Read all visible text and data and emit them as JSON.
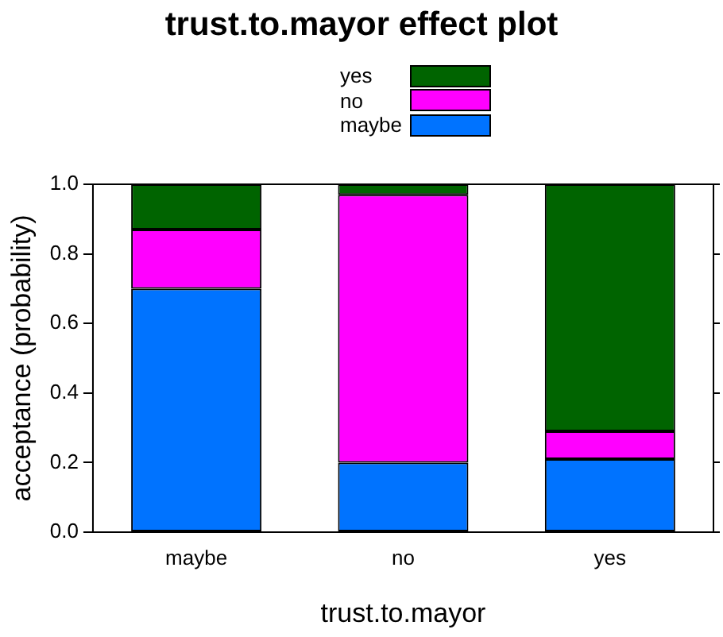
{
  "chart_data": {
    "type": "bar",
    "title": "trust.to.mayor effect plot",
    "xlabel": "trust.to.mayor",
    "ylabel": "acceptance (probability)",
    "categories": [
      "maybe",
      "no",
      "yes"
    ],
    "stacked": true,
    "legend": "top",
    "grid": false,
    "ylim": [
      0,
      1
    ],
    "yticks": [
      {
        "value": 0,
        "label": "0.0"
      },
      {
        "value": 0.2,
        "label": "0.2"
      },
      {
        "value": 0.4,
        "label": "0.4"
      },
      {
        "value": 0.6,
        "label": "0.6"
      },
      {
        "value": 0.8,
        "label": "0.8"
      },
      {
        "value": 1,
        "label": "1.0"
      }
    ],
    "series": [
      {
        "name": "maybe",
        "color": "#0073ff",
        "values": [
          0.7,
          0.2,
          0.21
        ]
      },
      {
        "name": "no",
        "color": "#ff00ff",
        "values": [
          0.17,
          0.77,
          0.08
        ]
      },
      {
        "name": "yes",
        "color": "#006400",
        "values": [
          0.13,
          0.03,
          0.71
        ]
      }
    ]
  }
}
